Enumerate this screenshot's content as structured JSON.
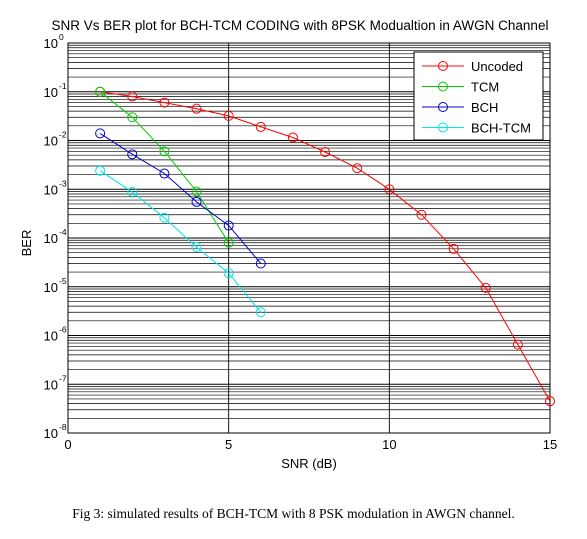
{
  "figure_caption": "Fig 3: simulated results of BCH-TCM with 8 PSK modulation in AWGN channel.",
  "chart_data": {
    "type": "line",
    "title": "SNR Vs BER plot for BCH-TCM CODING with 8PSK Modualtion in AWGN Channel",
    "xlabel": "SNR (dB)",
    "ylabel": "BER",
    "xlim": [
      0,
      15
    ],
    "ylim": [
      1e-08,
      1
    ],
    "yscale": "log",
    "grid": true,
    "legend_position": "top-right",
    "x_ticks": [
      "0",
      "5",
      "10",
      "15"
    ],
    "y_ticks": [
      {
        "base": "10",
        "exp": "0"
      },
      {
        "base": "10",
        "exp": "-1"
      },
      {
        "base": "10",
        "exp": "-2"
      },
      {
        "base": "10",
        "exp": "-3"
      },
      {
        "base": "10",
        "exp": "-4"
      },
      {
        "base": "10",
        "exp": "-5"
      },
      {
        "base": "10",
        "exp": "-6"
      },
      {
        "base": "10",
        "exp": "-7"
      },
      {
        "base": "10",
        "exp": "-8"
      }
    ],
    "series": [
      {
        "name": "Uncoded",
        "color": "#ff0000",
        "x": [
          1,
          2,
          3,
          4,
          5,
          6,
          7,
          8,
          9,
          10,
          11,
          12,
          13,
          14,
          15
        ],
        "y": [
          0.1,
          0.08,
          0.06,
          0.045,
          0.032,
          0.019,
          0.0115,
          0.0058,
          0.0027,
          0.001,
          0.0003,
          6e-05,
          9.5e-06,
          6.5e-07,
          4.5e-08
        ]
      },
      {
        "name": "TCM",
        "color": "#00cc00",
        "x": [
          1,
          2,
          3,
          4,
          5
        ],
        "y": [
          0.1,
          0.03,
          0.006,
          0.0009,
          8e-05
        ]
      },
      {
        "name": "BCH",
        "color": "#0000cc",
        "x": [
          1,
          2,
          3,
          4,
          5,
          6
        ],
        "y": [
          0.014,
          0.0052,
          0.0021,
          0.00055,
          0.00018,
          3e-05
        ]
      },
      {
        "name": "BCH-TCM",
        "color": "#00e5ee",
        "x": [
          1,
          2,
          3,
          4,
          5,
          6
        ],
        "y": [
          0.0024,
          0.00088,
          0.00026,
          6.5e-05,
          1.9e-05,
          3e-06
        ]
      }
    ]
  }
}
